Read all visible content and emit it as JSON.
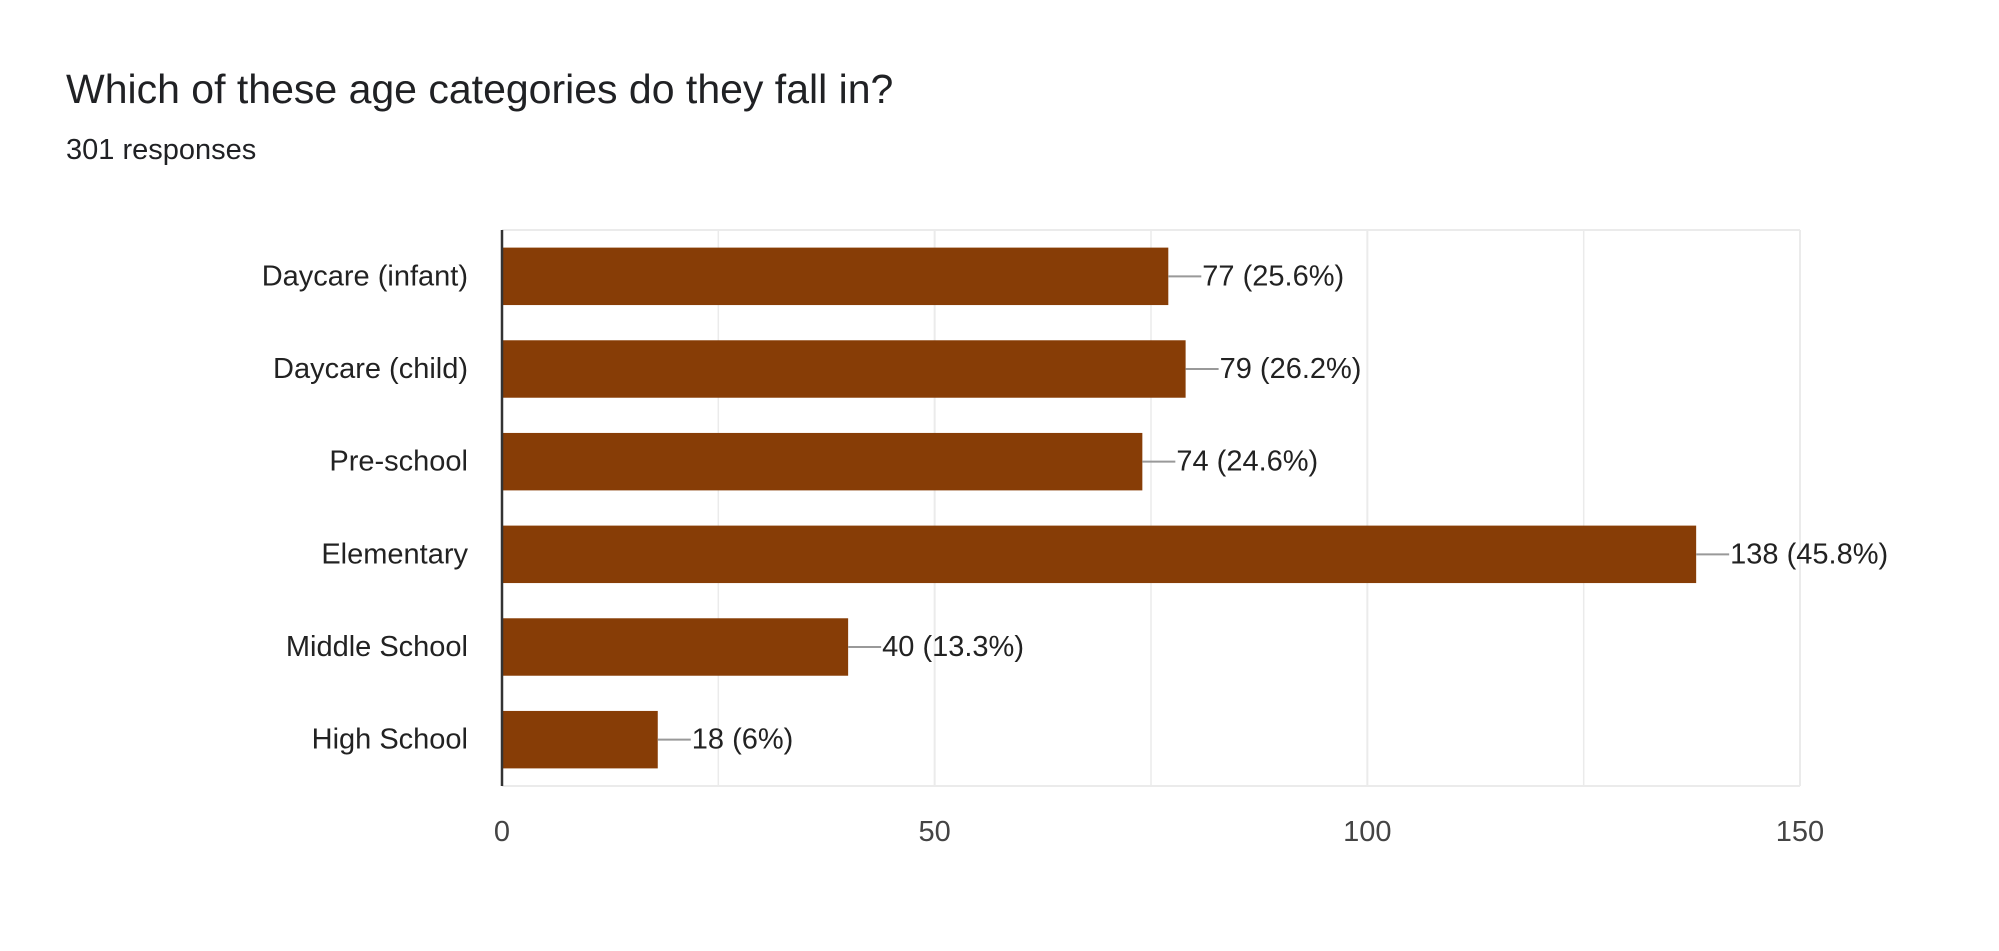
{
  "header": {
    "title": "Which of these age categories do they fall in?",
    "subtitle": "301 responses"
  },
  "colors": {
    "bar": "#873D06",
    "grid": "#ebebeb",
    "axis": "#333333",
    "leader": "#999999"
  },
  "chart_data": {
    "type": "bar",
    "orientation": "horizontal",
    "title": "Which of these age categories do they fall in?",
    "subtitle": "301 responses",
    "categories": [
      "Daycare (infant)",
      "Daycare (child)",
      "Pre-school",
      "Elementary",
      "Middle School",
      "High School"
    ],
    "values": [
      77,
      79,
      74,
      138,
      40,
      18
    ],
    "data_labels": [
      "77 (25.6%)",
      "79 (26.2%)",
      "74 (24.6%)",
      "138 (45.8%)",
      "40 (13.3%)",
      "18 (6%)"
    ],
    "xlim": [
      0,
      150
    ],
    "ticks": [
      0,
      50,
      100,
      150
    ],
    "tick_labels": [
      "0",
      "50",
      "100",
      "150"
    ],
    "minor_gridlines": [
      25,
      75,
      125
    ],
    "grid": true,
    "xlabel": "",
    "ylabel": ""
  }
}
